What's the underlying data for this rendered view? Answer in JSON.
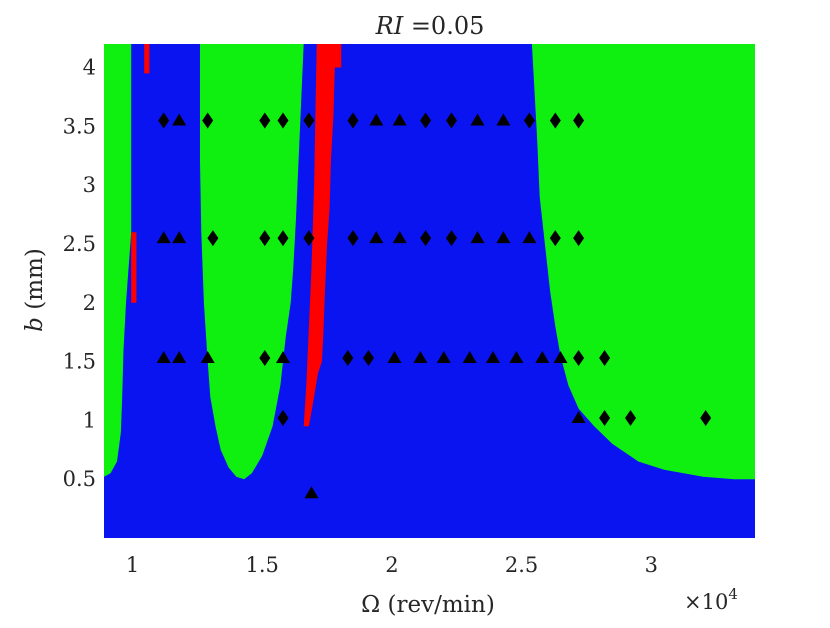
{
  "chart_data": {
    "type": "heatmap",
    "title_prefix": "RI",
    "title_suffix": " =0.05",
    "xlabel": "Ω (rev/min)",
    "ylabel_italic": "b",
    "ylabel_unit": " (mm)",
    "x_multiplier": "×10",
    "x_multiplier_exp": "4",
    "xlim": [
      8900,
      34000
    ],
    "ylim": [
      0,
      4.2
    ],
    "xticks": [
      {
        "value": 10000,
        "label": "1"
      },
      {
        "value": 15000,
        "label": "1.5"
      },
      {
        "value": 20000,
        "label": "2"
      },
      {
        "value": 25000,
        "label": "2.5"
      },
      {
        "value": 30000,
        "label": "3"
      }
    ],
    "yticks": [
      {
        "value": 0.5,
        "label": "0.5"
      },
      {
        "value": 1.0,
        "label": "1"
      },
      {
        "value": 1.5,
        "label": "1.5"
      },
      {
        "value": 2.0,
        "label": "2"
      },
      {
        "value": 2.5,
        "label": "2.5"
      },
      {
        "value": 3.0,
        "label": "3"
      },
      {
        "value": 3.5,
        "label": "3.5"
      },
      {
        "value": 4.0,
        "label": "4"
      }
    ],
    "colors": {
      "stable": "#0a14f0",
      "unstable": "#10f010",
      "red": "#ff0000",
      "marker": "#000000"
    },
    "green_regions": [
      {
        "name": "green-region-1",
        "points": [
          [
            8900,
            4.2
          ],
          [
            9950,
            4.2
          ],
          [
            9950,
            2.6
          ],
          [
            9850,
            2.3
          ],
          [
            9750,
            2.0
          ],
          [
            9650,
            1.6
          ],
          [
            9600,
            1.2
          ],
          [
            9550,
            0.9
          ],
          [
            9400,
            0.65
          ],
          [
            9150,
            0.55
          ],
          [
            8900,
            0.52
          ]
        ]
      },
      {
        "name": "green-region-2",
        "points": [
          [
            12600,
            4.2
          ],
          [
            16600,
            4.2
          ],
          [
            16500,
            3.7
          ],
          [
            16400,
            3.2
          ],
          [
            16300,
            2.7
          ],
          [
            16200,
            2.3
          ],
          [
            16100,
            2.0
          ],
          [
            15900,
            1.7
          ],
          [
            15700,
            1.3
          ],
          [
            15400,
            0.95
          ],
          [
            15000,
            0.7
          ],
          [
            14600,
            0.55
          ],
          [
            14300,
            0.5
          ],
          [
            14000,
            0.52
          ],
          [
            13700,
            0.6
          ],
          [
            13400,
            0.75
          ],
          [
            13200,
            0.95
          ],
          [
            13000,
            1.2
          ],
          [
            12900,
            1.5
          ],
          [
            12750,
            2.0
          ],
          [
            12650,
            2.6
          ],
          [
            12600,
            3.2
          ]
        ]
      },
      {
        "name": "green-region-3",
        "points": [
          [
            25400,
            4.2
          ],
          [
            34000,
            4.2
          ],
          [
            34000,
            0.5
          ],
          [
            33200,
            0.5
          ],
          [
            32000,
            0.52
          ],
          [
            30500,
            0.58
          ],
          [
            29500,
            0.65
          ],
          [
            28500,
            0.8
          ],
          [
            27800,
            0.95
          ],
          [
            27200,
            1.1
          ],
          [
            26800,
            1.3
          ],
          [
            26500,
            1.55
          ],
          [
            26300,
            1.8
          ],
          [
            26100,
            2.1
          ],
          [
            25900,
            2.5
          ],
          [
            25700,
            2.9
          ],
          [
            25600,
            3.4
          ],
          [
            25500,
            3.8
          ]
        ]
      }
    ],
    "red_regions": [
      {
        "name": "red-region-1",
        "points": [
          [
            10450,
            4.2
          ],
          [
            10650,
            4.2
          ],
          [
            10650,
            3.95
          ],
          [
            10450,
            3.95
          ]
        ]
      },
      {
        "name": "red-region-2",
        "points": [
          [
            9950,
            2.6
          ],
          [
            10150,
            2.6
          ],
          [
            10150,
            2.0
          ],
          [
            9950,
            2.0
          ]
        ]
      },
      {
        "name": "red-region-3",
        "points": [
          [
            17100,
            4.2
          ],
          [
            18050,
            4.2
          ],
          [
            18050,
            4.0
          ],
          [
            17800,
            4.0
          ],
          [
            17750,
            3.6
          ],
          [
            17650,
            3.2
          ],
          [
            17600,
            2.8
          ],
          [
            17500,
            2.5
          ],
          [
            17400,
            2.0
          ],
          [
            17350,
            1.7
          ],
          [
            17300,
            1.5
          ],
          [
            17150,
            1.4
          ],
          [
            17000,
            1.2
          ],
          [
            16800,
            0.95
          ],
          [
            16600,
            0.95
          ],
          [
            16700,
            1.3
          ],
          [
            16800,
            1.8
          ],
          [
            16900,
            2.3
          ],
          [
            17000,
            3.0
          ],
          [
            17050,
            3.6
          ]
        ]
      }
    ],
    "markers": [
      {
        "x": 11200,
        "y": 3.55,
        "shape": "diamond"
      },
      {
        "x": 11800,
        "y": 3.55,
        "shape": "triangle"
      },
      {
        "x": 12900,
        "y": 3.55,
        "shape": "diamond"
      },
      {
        "x": 15100,
        "y": 3.55,
        "shape": "diamond"
      },
      {
        "x": 15800,
        "y": 3.55,
        "shape": "diamond"
      },
      {
        "x": 16800,
        "y": 3.55,
        "shape": "diamond"
      },
      {
        "x": 18500,
        "y": 3.55,
        "shape": "diamond"
      },
      {
        "x": 19400,
        "y": 3.55,
        "shape": "triangle"
      },
      {
        "x": 20300,
        "y": 3.55,
        "shape": "triangle"
      },
      {
        "x": 21300,
        "y": 3.55,
        "shape": "diamond"
      },
      {
        "x": 22300,
        "y": 3.55,
        "shape": "diamond"
      },
      {
        "x": 23300,
        "y": 3.55,
        "shape": "triangle"
      },
      {
        "x": 24300,
        "y": 3.55,
        "shape": "triangle"
      },
      {
        "x": 25300,
        "y": 3.55,
        "shape": "diamond"
      },
      {
        "x": 26300,
        "y": 3.55,
        "shape": "diamond"
      },
      {
        "x": 27200,
        "y": 3.55,
        "shape": "diamond"
      },
      {
        "x": 11200,
        "y": 2.55,
        "shape": "triangle"
      },
      {
        "x": 11800,
        "y": 2.55,
        "shape": "triangle"
      },
      {
        "x": 13100,
        "y": 2.55,
        "shape": "diamond"
      },
      {
        "x": 15100,
        "y": 2.55,
        "shape": "diamond"
      },
      {
        "x": 15800,
        "y": 2.55,
        "shape": "diamond"
      },
      {
        "x": 16800,
        "y": 2.55,
        "shape": "diamond"
      },
      {
        "x": 18500,
        "y": 2.55,
        "shape": "diamond"
      },
      {
        "x": 19400,
        "y": 2.55,
        "shape": "triangle"
      },
      {
        "x": 20300,
        "y": 2.55,
        "shape": "triangle"
      },
      {
        "x": 21300,
        "y": 2.55,
        "shape": "diamond"
      },
      {
        "x": 22300,
        "y": 2.55,
        "shape": "diamond"
      },
      {
        "x": 23300,
        "y": 2.55,
        "shape": "triangle"
      },
      {
        "x": 24300,
        "y": 2.55,
        "shape": "triangle"
      },
      {
        "x": 25300,
        "y": 2.55,
        "shape": "triangle"
      },
      {
        "x": 26300,
        "y": 2.55,
        "shape": "diamond"
      },
      {
        "x": 27200,
        "y": 2.55,
        "shape": "diamond"
      },
      {
        "x": 11200,
        "y": 1.53,
        "shape": "triangle"
      },
      {
        "x": 11800,
        "y": 1.53,
        "shape": "triangle"
      },
      {
        "x": 12900,
        "y": 1.53,
        "shape": "triangle"
      },
      {
        "x": 15100,
        "y": 1.53,
        "shape": "diamond"
      },
      {
        "x": 15800,
        "y": 1.53,
        "shape": "triangle"
      },
      {
        "x": 18300,
        "y": 1.53,
        "shape": "diamond"
      },
      {
        "x": 19100,
        "y": 1.53,
        "shape": "diamond"
      },
      {
        "x": 20100,
        "y": 1.53,
        "shape": "triangle"
      },
      {
        "x": 21100,
        "y": 1.53,
        "shape": "triangle"
      },
      {
        "x": 22000,
        "y": 1.53,
        "shape": "triangle"
      },
      {
        "x": 23000,
        "y": 1.53,
        "shape": "triangle"
      },
      {
        "x": 23900,
        "y": 1.53,
        "shape": "triangle"
      },
      {
        "x": 24800,
        "y": 1.53,
        "shape": "triangle"
      },
      {
        "x": 25800,
        "y": 1.53,
        "shape": "triangle"
      },
      {
        "x": 26500,
        "y": 1.53,
        "shape": "triangle"
      },
      {
        "x": 27200,
        "y": 1.53,
        "shape": "diamond"
      },
      {
        "x": 28200,
        "y": 1.53,
        "shape": "diamond"
      },
      {
        "x": 15800,
        "y": 1.02,
        "shape": "diamond"
      },
      {
        "x": 27200,
        "y": 1.02,
        "shape": "triangle"
      },
      {
        "x": 28200,
        "y": 1.02,
        "shape": "diamond"
      },
      {
        "x": 29200,
        "y": 1.02,
        "shape": "diamond"
      },
      {
        "x": 32100,
        "y": 1.02,
        "shape": "diamond"
      },
      {
        "x": 16900,
        "y": 0.38,
        "shape": "triangle"
      }
    ]
  }
}
